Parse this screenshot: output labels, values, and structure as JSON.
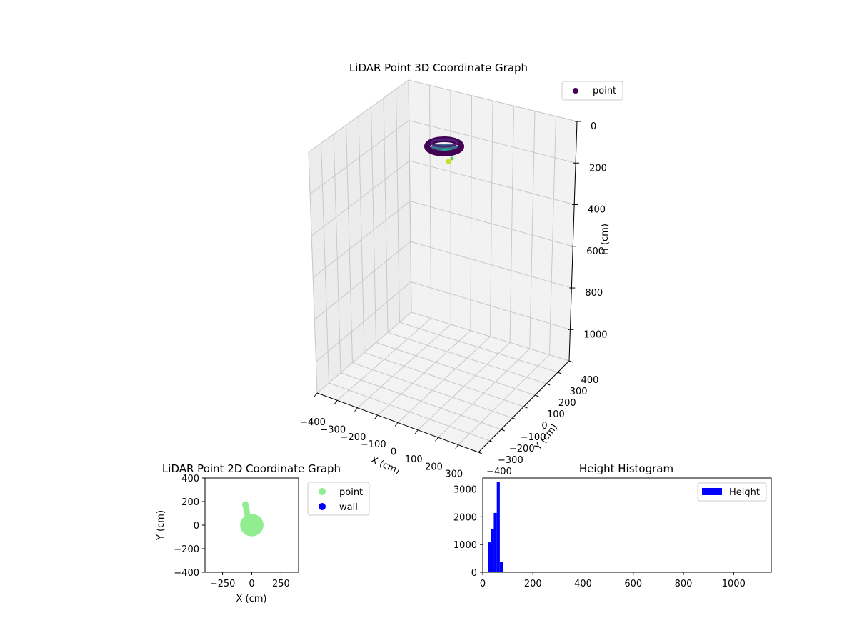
{
  "chart_data": [
    {
      "type": "scatter",
      "projection": "3d",
      "title": "LiDAR Point 3D Coordinate Graph",
      "xlabel": "X (cm)",
      "ylabel": "Y (cm)",
      "zlabel": "H (cm)",
      "xlim": [
        -400,
        400
      ],
      "ylim": [
        -400,
        400
      ],
      "zlim": [
        0,
        1150
      ],
      "z_inverted": true,
      "xticks": [
        "−400",
        "−300",
        "−200",
        "−100",
        "0",
        "100",
        "200",
        "300"
      ],
      "yticks": [
        "−400",
        "−300",
        "−200",
        "−100",
        "0",
        "100",
        "200",
        "300",
        "400"
      ],
      "zticks": [
        "0",
        "200",
        "400",
        "600",
        "800",
        "1000"
      ],
      "grid": true,
      "legend_position": "top-right",
      "colormap": "viridis",
      "series": [
        {
          "name": "point",
          "color": "#440154",
          "shape": "ring",
          "center": {
            "x": 0,
            "y": 0,
            "h": 60
          },
          "radius_cm": 90
        }
      ]
    },
    {
      "type": "scatter",
      "title": "LiDAR Point 2D Coordinate Graph",
      "xlabel": "X (cm)",
      "ylabel": "Y (cm)",
      "xlim": [
        -400,
        400
      ],
      "ylim": [
        -400,
        400
      ],
      "xticks": [
        -250,
        0,
        250
      ],
      "yticks": [
        -400,
        -200,
        0,
        200,
        400
      ],
      "legend_position": "outside-right",
      "series": [
        {
          "name": "point",
          "color": "#90ee90",
          "blob": {
            "center": [
              0,
              0
            ],
            "radius": 100
          },
          "arm": [
            [
              -55,
              175
            ],
            [
              -45,
              125
            ],
            [
              -35,
              75
            ],
            [
              -20,
              20
            ]
          ]
        },
        {
          "name": "wall",
          "color": "#0000ff",
          "points": []
        }
      ]
    },
    {
      "type": "bar",
      "subtype": "histogram",
      "title": "Height Histogram",
      "xlabel": "",
      "ylabel": "",
      "xlim": [
        0,
        1150
      ],
      "ylim": [
        0,
        3400
      ],
      "xticks": [
        0,
        200,
        400,
        600,
        800,
        1000
      ],
      "yticks": [
        0,
        1000,
        2000,
        3000
      ],
      "legend_position": "top-right",
      "series": [
        {
          "name": "Height",
          "color": "#0000ff",
          "bins": [
            {
              "x0": 20,
              "x1": 32,
              "value": 1080
            },
            {
              "x0": 32,
              "x1": 44,
              "value": 1550
            },
            {
              "x0": 44,
              "x1": 56,
              "value": 2140
            },
            {
              "x0": 56,
              "x1": 68,
              "value": 3250
            },
            {
              "x0": 68,
              "x1": 80,
              "value": 380
            }
          ]
        }
      ]
    }
  ]
}
